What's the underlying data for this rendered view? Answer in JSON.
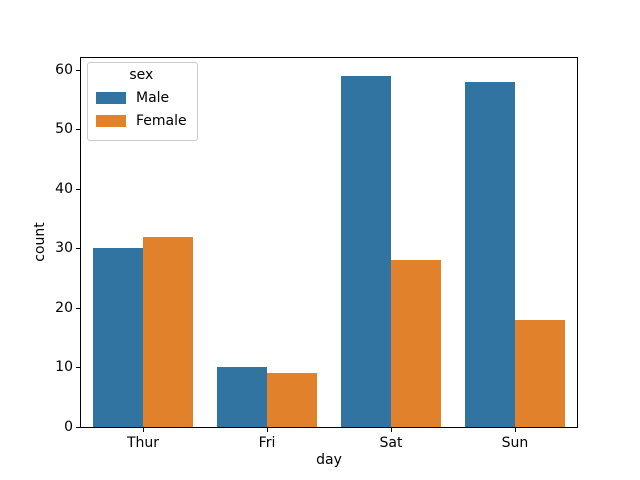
{
  "chart_data": {
    "type": "bar",
    "title": "",
    "xlabel": "day",
    "ylabel": "count",
    "categories": [
      "Thur",
      "Fri",
      "Sat",
      "Sun"
    ],
    "series": [
      {
        "name": "Male",
        "color": "#3274a1",
        "values": [
          30,
          10,
          59,
          58
        ]
      },
      {
        "name": "Female",
        "color": "#e1812c",
        "values": [
          32,
          9,
          28,
          18
        ]
      }
    ],
    "yticks": [
      0,
      10,
      20,
      30,
      40,
      50,
      60
    ],
    "ylim": [
      0,
      62
    ],
    "bar_group_width": 0.8,
    "grid": false,
    "legend": {
      "title": "sex",
      "position": "upper-left"
    }
  }
}
